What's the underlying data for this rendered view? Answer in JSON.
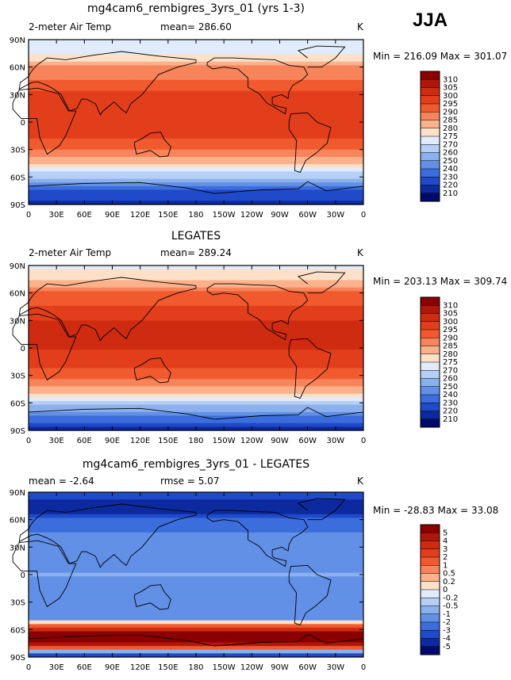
{
  "season": "JJA",
  "chart_data": [
    {
      "type": "heatmap",
      "title": "mg4cam6_rembigres_3yrs_01 (yrs 1-3)",
      "left_label": "2-meter Air Temp",
      "center_label": "mean= 286.60",
      "units": "K",
      "min_max": "Min = 216.09 Max = 301.07",
      "x_ticks": [
        "0",
        "30E",
        "60E",
        "90E",
        "120E",
        "150E",
        "180",
        "150W",
        "120W",
        "90W",
        "60W",
        "30W",
        "0"
      ],
      "y_ticks": [
        "90N",
        "60N",
        "30N",
        "0",
        "30S",
        "60S",
        "90S"
      ],
      "colorbar_levels": [
        "310",
        "305",
        "300",
        "295",
        "290",
        "285",
        "280",
        "275",
        "270",
        "260",
        "250",
        "240",
        "230",
        "220",
        "210"
      ],
      "colorbar_colors": [
        "#8b0000",
        "#b0160a",
        "#cf2b10",
        "#e23e1b",
        "#f05a2e",
        "#f7845a",
        "#fbb28c",
        "#fde0c8",
        "#e0ecfb",
        "#b6cff5",
        "#8cb0ee",
        "#6190e6",
        "#3b6ddc",
        "#1f4ac9",
        "#0c2a9e",
        "#000a6b"
      ],
      "latitude_profile": [
        {
          "lat": 90,
          "value": 270
        },
        {
          "lat": 75,
          "value": 275
        },
        {
          "lat": 60,
          "value": 285
        },
        {
          "lat": 45,
          "value": 290
        },
        {
          "lat": 30,
          "value": 298
        },
        {
          "lat": 15,
          "value": 300
        },
        {
          "lat": 0,
          "value": 299
        },
        {
          "lat": -15,
          "value": 296
        },
        {
          "lat": -30,
          "value": 290
        },
        {
          "lat": -45,
          "value": 280
        },
        {
          "lat": -55,
          "value": 270
        },
        {
          "lat": -65,
          "value": 250
        },
        {
          "lat": -75,
          "value": 230
        },
        {
          "lat": -90,
          "value": 218
        }
      ]
    },
    {
      "type": "heatmap",
      "title": "LEGATES",
      "left_label": "2-meter Air Temp",
      "center_label": "mean= 289.24",
      "units": "K",
      "min_max": "Min = 203.13 Max = 309.74",
      "x_ticks": [
        "0",
        "30E",
        "60E",
        "90E",
        "120E",
        "150E",
        "180",
        "150W",
        "120W",
        "90W",
        "60W",
        "30W",
        "0"
      ],
      "y_ticks": [
        "90N",
        "60N",
        "30N",
        "0",
        "30S",
        "60S",
        "90S"
      ],
      "colorbar_levels": [
        "310",
        "305",
        "300",
        "295",
        "290",
        "285",
        "280",
        "275",
        "270",
        "260",
        "250",
        "240",
        "230",
        "220",
        "210"
      ],
      "colorbar_colors": [
        "#8b0000",
        "#b0160a",
        "#cf2b10",
        "#e23e1b",
        "#f05a2e",
        "#f7845a",
        "#fbb28c",
        "#fde0c8",
        "#e0ecfb",
        "#b6cff5",
        "#8cb0ee",
        "#6190e6",
        "#3b6ddc",
        "#1f4ac9",
        "#0c2a9e",
        "#000a6b"
      ],
      "latitude_profile": [
        {
          "lat": 90,
          "value": 272
        },
        {
          "lat": 75,
          "value": 280
        },
        {
          "lat": 60,
          "value": 290
        },
        {
          "lat": 45,
          "value": 295
        },
        {
          "lat": 30,
          "value": 300
        },
        {
          "lat": 15,
          "value": 301
        },
        {
          "lat": 0,
          "value": 300
        },
        {
          "lat": -15,
          "value": 297
        },
        {
          "lat": -30,
          "value": 292
        },
        {
          "lat": -45,
          "value": 283
        },
        {
          "lat": -55,
          "value": 275
        },
        {
          "lat": -65,
          "value": 255
        },
        {
          "lat": -75,
          "value": 240
        },
        {
          "lat": -90,
          "value": 215
        }
      ]
    },
    {
      "type": "heatmap",
      "title": "mg4cam6_rembigres_3yrs_01 - LEGATES",
      "left_label": "mean = -2.64",
      "center_label": "rmse = 5.07",
      "units": "K",
      "min_max": "Min = -28.83 Max = 33.08",
      "x_ticks": [
        "0",
        "30E",
        "60E",
        "90E",
        "120E",
        "150E",
        "180",
        "150W",
        "120W",
        "90W",
        "60W",
        "30W",
        "0"
      ],
      "y_ticks": [
        "90N",
        "60N",
        "30N",
        "0",
        "30S",
        "60S",
        "90S"
      ],
      "colorbar_levels": [
        "5",
        "4",
        "3",
        "2",
        "1",
        "0.5",
        "0.2",
        "0",
        "-0.2",
        "-0.5",
        "-1",
        "-2",
        "-3",
        "-4",
        "-5"
      ],
      "colorbar_colors": [
        "#8b0000",
        "#b0160a",
        "#cf2b10",
        "#e23e1b",
        "#f05a2e",
        "#f7845a",
        "#fbb28c",
        "#fde0c8",
        "#e0ecfb",
        "#b6cff5",
        "#8cb0ee",
        "#6190e6",
        "#3b6ddc",
        "#1f4ac9",
        "#0c2a9e",
        "#000a6b"
      ],
      "latitude_profile": [
        {
          "lat": 90,
          "value": -3
        },
        {
          "lat": 75,
          "value": -5
        },
        {
          "lat": 60,
          "value": -3
        },
        {
          "lat": 45,
          "value": -2
        },
        {
          "lat": 30,
          "value": -1
        },
        {
          "lat": 15,
          "value": -1.5
        },
        {
          "lat": 0,
          "value": -1
        },
        {
          "lat": -15,
          "value": -1.5
        },
        {
          "lat": -30,
          "value": -1
        },
        {
          "lat": -45,
          "value": -2
        },
        {
          "lat": -55,
          "value": 1
        },
        {
          "lat": -62,
          "value": 5
        },
        {
          "lat": -75,
          "value": 5
        },
        {
          "lat": -90,
          "value": -5
        }
      ]
    }
  ]
}
